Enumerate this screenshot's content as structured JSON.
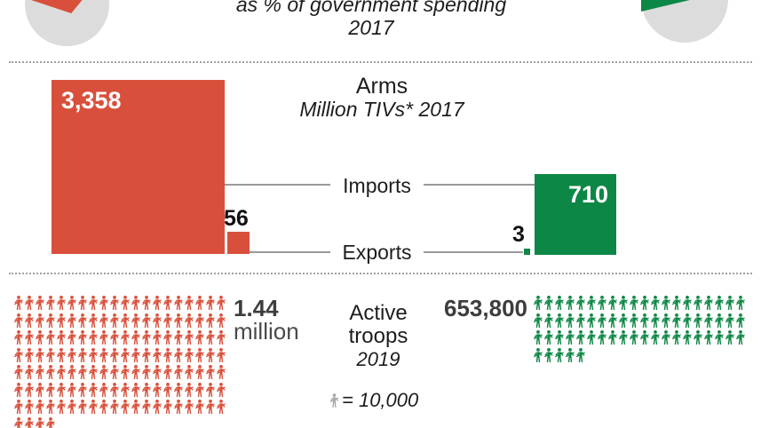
{
  "colors": {
    "red": "#d8503c",
    "green": "#0d8745",
    "pie_gray": "#dcdcdd",
    "line_gray": "#9a9a9a",
    "dark": "#1d1d1d",
    "number_gray": "#3d3d3d",
    "legend_gray": "#a8a8a8"
  },
  "header": {
    "subtitle_line1": "as % of government spending",
    "subtitle_line2": "2017"
  },
  "arms": {
    "title": "Arms",
    "subtitle": "Million TIVs* 2017",
    "imports_label": "Imports",
    "exports_label": "Exports",
    "red_imports": "3,358",
    "red_exports": "56",
    "green_imports": "710",
    "green_exports": "3"
  },
  "troops": {
    "title_line1": "Active",
    "title_line2": "troops",
    "year": "2019",
    "legend_text": "= 10,000",
    "red_value_line1": "1.44",
    "red_value_line2": "million",
    "green_value": "653,800",
    "red": {
      "figures": 144,
      "per_row": 20
    },
    "green": {
      "figures": 65,
      "per_row": 20
    },
    "unit_per_figure": 10000
  },
  "chart_data": [
    {
      "type": "pie",
      "title": "as % of government spending 2017",
      "note": "two partial pie charts cropped at top of image; slice values not visible",
      "series": [
        {
          "name": "red country slice",
          "color": "#d8503c",
          "base": "#dcdcdd"
        },
        {
          "name": "green country slice",
          "color": "#0d8745",
          "base": "#dcdcdd"
        }
      ]
    },
    {
      "type": "bar",
      "title": "Arms",
      "subtitle": "Million TIVs* 2017",
      "categories": [
        "Imports",
        "Exports"
      ],
      "series": [
        {
          "name": "red country",
          "color": "#d8503c",
          "values": [
            3358,
            56
          ]
        },
        {
          "name": "green country",
          "color": "#0d8745",
          "values": [
            710,
            3
          ]
        }
      ],
      "encoding": "square area proportional to value"
    },
    {
      "type": "pictogram",
      "title": "Active troops 2019",
      "unit": 10000,
      "series": [
        {
          "name": "red country",
          "value": 1440000,
          "label": "1.44 million",
          "icons": 144
        },
        {
          "name": "green country",
          "value": 653800,
          "label": "653,800",
          "icons": 65
        }
      ],
      "legend": "1 figure = 10,000"
    }
  ]
}
